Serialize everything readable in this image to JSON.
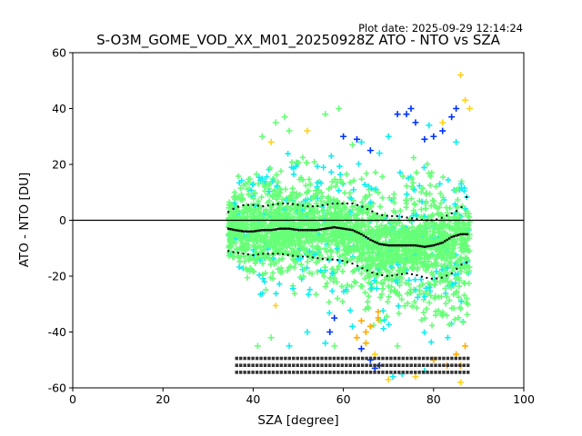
{
  "chart_data": {
    "type": "scatter",
    "title": "S-O3M_GOME_VOD_XX_M01_20250928Z ATO - NTO vs SZA",
    "plot_date": "Plot date: 2025-09-29 12:14:24",
    "xlabel": "SZA [degree]",
    "ylabel": "ATO - NTO [DU]",
    "xlim": [
      0,
      100
    ],
    "ylim": [
      -60,
      60
    ],
    "xticks": [
      0,
      20,
      40,
      60,
      80,
      100
    ],
    "yticks": [
      -60,
      -40,
      -20,
      0,
      20,
      40,
      60
    ],
    "zero_line": 0,
    "grid": false,
    "colors": {
      "scatter_green": "#66ff77",
      "scatter_cyan": "#11eeee",
      "scatter_blue": "#0033ff",
      "scatter_yellow": "#ffd21a",
      "scatter_orange": "#ffaa00",
      "stat_marks": "#000000"
    },
    "scatter_envelope": {
      "sza": [
        34.5,
        36,
        38,
        40,
        42,
        44,
        46,
        48,
        50,
        52,
        54,
        56,
        58,
        60,
        62,
        64,
        66,
        68,
        70,
        72,
        74,
        76,
        78,
        80,
        82,
        84,
        86,
        88
      ],
      "upper": [
        18,
        24,
        27,
        28,
        29,
        30,
        31,
        31,
        31,
        31,
        31,
        31,
        30,
        30,
        30,
        29,
        28,
        28,
        28,
        30,
        32,
        33,
        32,
        31,
        31,
        31,
        31,
        20
      ],
      "lower": [
        -24,
        -27,
        -30,
        -33,
        -34,
        -35,
        -36,
        -36,
        -36,
        -36,
        -37,
        -37,
        -37,
        -38,
        -42,
        -46,
        -50,
        -52,
        -52,
        -52,
        -52,
        -52,
        -52,
        -52,
        -54,
        -55,
        -56,
        -45
      ]
    },
    "median_line": {
      "sza": [
        34.5,
        36,
        38,
        40,
        42,
        44,
        46,
        48,
        50,
        52,
        54,
        56,
        58,
        60,
        62,
        64,
        66,
        68,
        70,
        72,
        74,
        76,
        78,
        80,
        82,
        84,
        86,
        87.5
      ],
      "values": [
        -3,
        -3.5,
        -4,
        -4,
        -3.5,
        -3.5,
        -3,
        -3,
        -3.5,
        -3.5,
        -3.5,
        -3,
        -2.5,
        -3,
        -3.5,
        -5,
        -7,
        -8.5,
        -9,
        -9,
        -9,
        -9,
        -9.5,
        -9,
        -8,
        -6,
        -5,
        -5
      ]
    },
    "upper_dotted_line": {
      "sza": [
        34.5,
        36,
        38,
        40,
        42,
        44,
        46,
        48,
        50,
        52,
        54,
        56,
        58,
        60,
        62,
        64,
        66,
        68,
        70,
        72,
        74,
        76,
        78,
        80,
        82,
        84,
        86,
        87.5
      ],
      "values": [
        3,
        4.5,
        5.5,
        5.5,
        5,
        5.5,
        6,
        6,
        5.5,
        5,
        5,
        5.5,
        6,
        6,
        6,
        5,
        3.5,
        2,
        1.5,
        1.5,
        1,
        0.5,
        0,
        0,
        1,
        2.5,
        4,
        9
      ]
    },
    "lower_dotted_line": {
      "sza": [
        34.5,
        36,
        38,
        40,
        42,
        44,
        46,
        48,
        50,
        52,
        54,
        56,
        58,
        60,
        62,
        64,
        66,
        68,
        70,
        72,
        74,
        76,
        78,
        80,
        82,
        84,
        86,
        87.5
      ],
      "values": [
        -11,
        -11.5,
        -12,
        -12.5,
        -12,
        -12,
        -12,
        -12.5,
        -13,
        -13,
        -13.5,
        -14,
        -14,
        -14.5,
        -15.5,
        -17,
        -18.5,
        -19.5,
        -20,
        -19.5,
        -19,
        -19.5,
        -20.5,
        -21,
        -20.5,
        -19,
        -16,
        -15
      ]
    },
    "outliers": {
      "blue": [
        [
          60,
          30
        ],
        [
          63,
          29
        ],
        [
          66,
          25
        ],
        [
          72,
          38
        ],
        [
          74,
          38
        ],
        [
          75,
          40
        ],
        [
          76,
          35
        ],
        [
          78,
          29
        ],
        [
          80,
          30
        ],
        [
          82,
          32
        ],
        [
          84,
          37
        ],
        [
          85,
          40
        ],
        [
          57,
          -40
        ],
        [
          58,
          -35
        ],
        [
          66,
          -50
        ],
        [
          67,
          -53
        ],
        [
          68,
          -52
        ],
        [
          64,
          -46
        ]
      ],
      "cyan": [
        [
          64,
          28
        ],
        [
          68,
          24
        ],
        [
          70,
          30
        ],
        [
          79,
          34
        ],
        [
          85,
          28
        ],
        [
          48,
          -45
        ],
        [
          52,
          -40
        ],
        [
          56,
          -44
        ],
        [
          62,
          -38
        ],
        [
          71,
          -56
        ],
        [
          73,
          -55
        ],
        [
          78,
          -54
        ]
      ],
      "yellow": [
        [
          86,
          52
        ],
        [
          87,
          43
        ],
        [
          88,
          40
        ],
        [
          82,
          35
        ],
        [
          52,
          32
        ],
        [
          44,
          28
        ],
        [
          67,
          -48
        ],
        [
          70,
          -57
        ],
        [
          76,
          -56
        ],
        [
          86,
          -58
        ]
      ],
      "orange": [
        [
          64,
          -36
        ],
        [
          65,
          -40
        ],
        [
          66,
          -38
        ],
        [
          63,
          -42
        ],
        [
          65,
          -44
        ],
        [
          80,
          -50
        ],
        [
          83,
          -52
        ],
        [
          85,
          -48
        ],
        [
          86,
          -52
        ],
        [
          87,
          -45
        ]
      ],
      "green": [
        [
          45,
          35
        ],
        [
          48,
          32
        ],
        [
          56,
          38
        ],
        [
          59,
          40
        ],
        [
          47,
          37
        ],
        [
          42,
          30
        ],
        [
          41,
          -45
        ],
        [
          44,
          -42
        ],
        [
          58,
          -45
        ],
        [
          72,
          -45
        ],
        [
          62,
          27
        ]
      ]
    },
    "count_labels": {
      "rows": 3,
      "sza_start": 36,
      "sza_end": 88,
      "y_values": [
        -49.5,
        -52,
        -54.5
      ]
    }
  }
}
